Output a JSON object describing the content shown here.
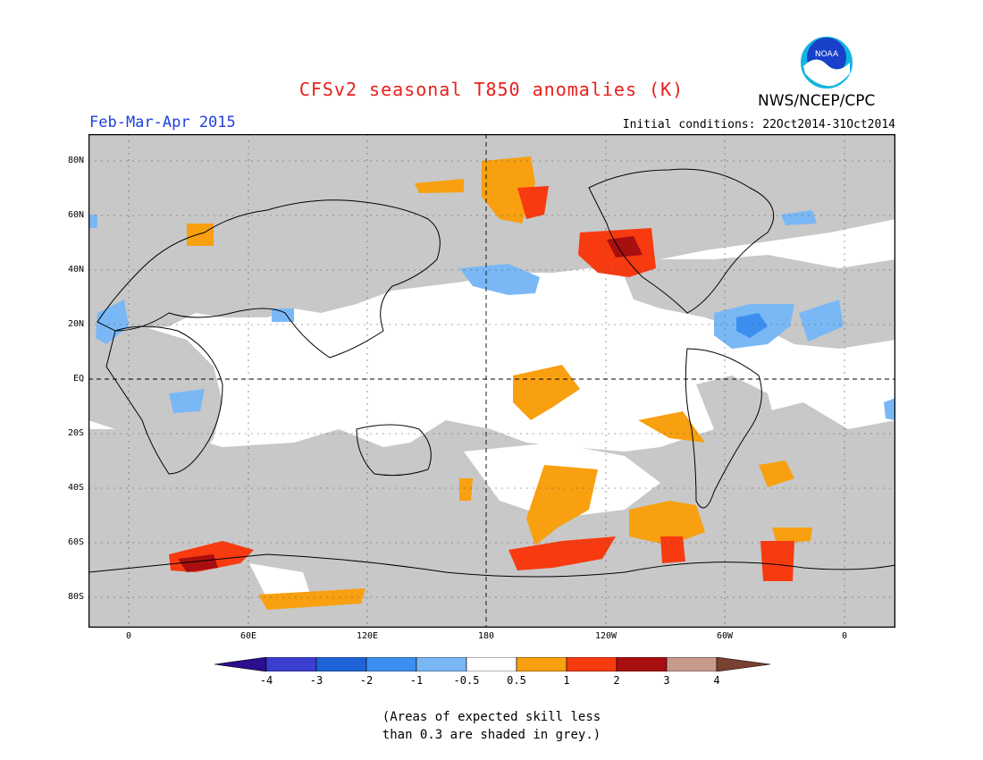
{
  "header": {
    "title": "CFSv2 seasonal T850 anomalies (K)",
    "season": "Feb-Mar-Apr 2015",
    "initial_conditions": "Initial conditions: 22Oct2014-31Oct2014",
    "org": "NWS/NCEP/CPC",
    "logo_text": "NOAA"
  },
  "map": {
    "lat_labels": [
      "80N",
      "60N",
      "40N",
      "20N",
      "EQ",
      "20S",
      "40S",
      "60S",
      "80S"
    ],
    "lon_labels": [
      "0",
      "60E",
      "120E",
      "180",
      "120W",
      "60W",
      "0"
    ],
    "colors": {
      "land_skill_grey": "#c8c8c8",
      "ocean": "#ffffff",
      "coast": "#000000"
    }
  },
  "colorbar": {
    "labels": [
      "-4",
      "-3",
      "-2",
      "-1",
      "-0.5",
      "0.5",
      "1",
      "2",
      "3",
      "4"
    ],
    "colors": [
      "#2c0e8e",
      "#3b3fd0",
      "#1e64d8",
      "#3c8ff0",
      "#7ab8f5",
      "#ffffff",
      "#f8a010",
      "#f83a10",
      "#a80f10",
      "#c89a8c",
      "#7a4030"
    ]
  },
  "note": {
    "line1": "(Areas of expected skill less",
    "line2": "than 0.3 are shaded in grey.)"
  }
}
